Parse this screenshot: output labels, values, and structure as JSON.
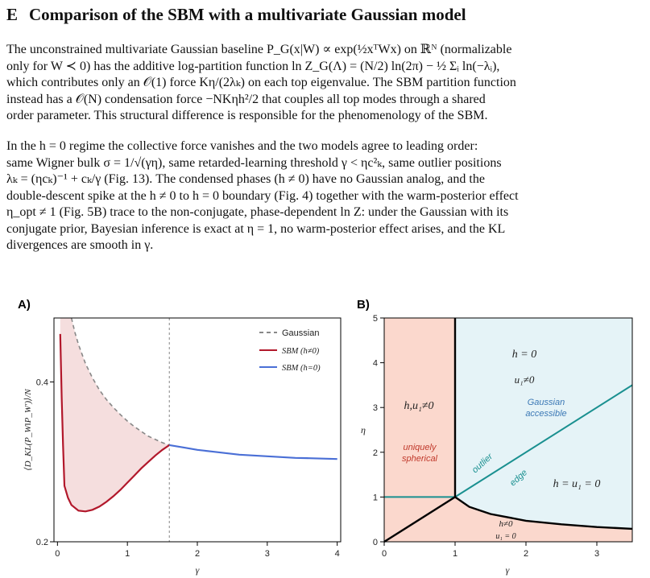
{
  "section": {
    "number": "E",
    "title": "Comparison of the SBM with a multivariate Gaussian model"
  },
  "paragraphs": [
    {
      "lines": [
        "The unconstrained multivariate Gaussian baseline P_G(x|W) ∝ exp(½xᵀWx) on ℝᴺ (normalizable",
        "only for W ≺ 0) has the additive log-partition function ln Z_G(Λ) = (N/2) ln(2π) − ½ Σᵢ ln(−λᵢ),",
        "which contributes only an 𝒪(1) force Kη/(2λₖ) on each top eigenvalue. The SBM partition function",
        "instead has a 𝒪(N) condensation force −NKηh²/2 that couples all top modes through a shared",
        "order parameter. This structural difference is responsible for the phenomenology of the SBM."
      ]
    },
    {
      "lines": [
        "In the h = 0 regime the collective force vanishes and the two models agree to leading order:",
        "same Wigner bulk σ = 1/√(γη), same retarded-learning threshold γ < ηc²ₖ, same outlier positions",
        "λₖ = (ηcₖ)⁻¹ + cₖ/γ (Fig. 13). The condensed phases (h ≠ 0) have no Gaussian analog, and the",
        "double-descent spike at the h ≠ 0 to h = 0 boundary (Fig. 4) together with the warm-posterior effect",
        "η_opt ≠ 1 (Fig. 5B) trace to the non-conjugate, phase-dependent ln Z: under the Gaussian with its",
        "conjugate prior, Bayesian inference is exact at η = 1, no warm-posterior effect arises, and the KL",
        "divergences are smooth in γ."
      ]
    }
  ],
  "figure": {
    "panel_a": {
      "label": "A)",
      "ylabel": "⟨D_KL(P_W‖P_W')⟩/N",
      "xlabel": "γ",
      "colors": {
        "gaussian": "#888888",
        "sbm_h_nonzero": "#b2182b",
        "sbm_h_zero": "#4a6fd6",
        "shade": "#f5dede",
        "vline": "#999999"
      },
      "legend": [
        {
          "key": "gaussian",
          "label": "Gaussian"
        },
        {
          "key": "sbm_h_nonzero",
          "label": "SBM (h≠0)"
        },
        {
          "key": "sbm_h_zero",
          "label": "SBM (h=0)"
        }
      ]
    },
    "panel_b": {
      "label": "B)",
      "ylabel": "η",
      "xlabel": "γ",
      "colors": {
        "left_region": "#fbd8cd",
        "right_region": "#e5f3f7",
        "teal": "#1a9090",
        "red_text": "#c0392b",
        "blue_text": "#3b78b5",
        "boundary": "#000000"
      },
      "labels": {
        "h0": "h = 0",
        "u1_nonzero": "u₁≠0",
        "gaussian_accessible_1": "Gaussian",
        "gaussian_accessible_2": "accessible",
        "h_u1_nonzero": "h,u₁≠0",
        "uniquely_1": "uniquely",
        "uniquely_2": "spherical",
        "outlier": "outlier",
        "edge": "edge",
        "h_u1_zero": "h = u₁ = 0",
        "h_nonzero": "h≠0",
        "u1_zero": "u₁ = 0"
      }
    }
  },
  "chart_data": [
    {
      "type": "line",
      "xlabel": "γ",
      "ylabel": "⟨D_KL(P_W‖P_W')⟩/N",
      "xlim": [
        -0.05,
        4.05
      ],
      "ylim": [
        0.2,
        0.48
      ],
      "xticks": [
        0,
        1,
        2,
        3,
        4
      ],
      "yticks": [
        0.2,
        0.4
      ],
      "grid": false,
      "legend_position": "top-right",
      "vline_x": 1.6,
      "series": [
        {
          "name": "Gaussian",
          "style": "dashed",
          "x": [
            0.2,
            0.25,
            0.3,
            0.4,
            0.5,
            0.6,
            0.7,
            0.8,
            0.9,
            1.0,
            1.1,
            1.2,
            1.3,
            1.4,
            1.5,
            1.6
          ],
          "y": [
            0.48,
            0.462,
            0.447,
            0.423,
            0.405,
            0.39,
            0.378,
            0.368,
            0.359,
            0.351,
            0.344,
            0.338,
            0.332,
            0.328,
            0.324,
            0.321
          ]
        },
        {
          "name": "SBM (h≠0)",
          "style": "solid",
          "x": [
            0.04,
            0.06,
            0.08,
            0.1,
            0.15,
            0.2,
            0.3,
            0.4,
            0.5,
            0.6,
            0.7,
            0.8,
            0.9,
            1.0,
            1.1,
            1.2,
            1.3,
            1.4,
            1.5,
            1.6
          ],
          "y": [
            0.46,
            0.38,
            0.32,
            0.27,
            0.255,
            0.246,
            0.239,
            0.238,
            0.24,
            0.244,
            0.25,
            0.257,
            0.265,
            0.274,
            0.283,
            0.292,
            0.3,
            0.308,
            0.315,
            0.321
          ]
        },
        {
          "name": "SBM (h=0)",
          "style": "solid",
          "x": [
            1.6,
            1.8,
            2.0,
            2.2,
            2.4,
            2.6,
            2.8,
            3.0,
            3.2,
            3.4,
            3.6,
            3.8,
            4.0
          ],
          "y": [
            0.321,
            0.318,
            0.315,
            0.313,
            0.311,
            0.309,
            0.308,
            0.307,
            0.306,
            0.305,
            0.3045,
            0.304,
            0.3035
          ]
        }
      ]
    },
    {
      "type": "area",
      "xlabel": "γ",
      "ylabel": "η",
      "xlim": [
        0,
        3.5
      ],
      "ylim": [
        0,
        5
      ],
      "xticks": [
        0,
        1,
        2,
        3
      ],
      "yticks": [
        0,
        1,
        2,
        3,
        4,
        5
      ],
      "grid": false,
      "boundaries": [
        {
          "name": "vertical",
          "x": [
            1,
            1
          ],
          "y": [
            1,
            5
          ]
        },
        {
          "name": "diagonal",
          "x": [
            0,
            1
          ],
          "y": [
            0,
            1
          ]
        },
        {
          "name": "teal-horizontal",
          "x": [
            0,
            1
          ],
          "y": [
            1,
            1
          ]
        },
        {
          "name": "teal-outlier-edge",
          "x": [
            1,
            3.5
          ],
          "y": [
            1,
            3.5
          ]
        },
        {
          "name": "lower",
          "x": [
            1,
            1.2,
            1.5,
            2,
            2.5,
            3,
            3.5
          ],
          "y": [
            1,
            0.78,
            0.62,
            0.47,
            0.39,
            0.33,
            0.29
          ]
        }
      ]
    }
  ]
}
